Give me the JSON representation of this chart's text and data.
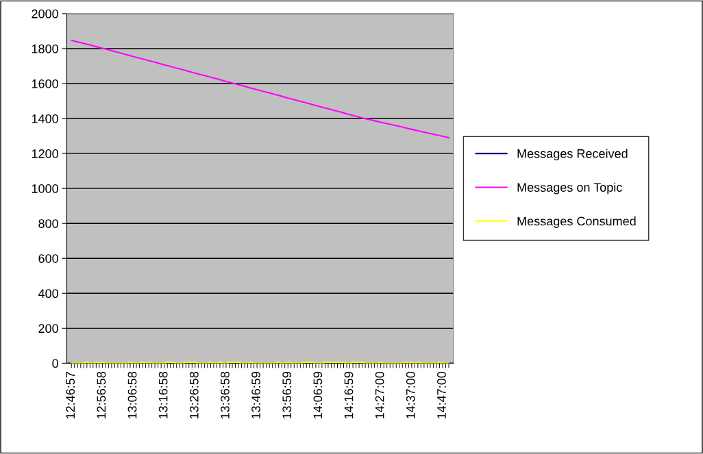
{
  "chart_data": {
    "type": "line",
    "categories": [
      "12:46:57",
      null,
      null,
      null,
      null,
      null,
      null,
      null,
      null,
      null,
      "12:56:58",
      null,
      null,
      null,
      null,
      null,
      null,
      null,
      null,
      null,
      "13:06:58",
      null,
      null,
      null,
      null,
      null,
      null,
      null,
      null,
      null,
      "13:16:58",
      null,
      null,
      null,
      null,
      null,
      null,
      null,
      null,
      null,
      "13:26:58",
      null,
      null,
      null,
      null,
      null,
      null,
      null,
      null,
      null,
      "13:36:58",
      null,
      null,
      null,
      null,
      null,
      null,
      null,
      null,
      null,
      "13:46:59",
      null,
      null,
      null,
      null,
      null,
      null,
      null,
      null,
      null,
      "13:56:59",
      null,
      null,
      null,
      null,
      null,
      null,
      null,
      null,
      null,
      "14:06:59",
      null,
      null,
      null,
      null,
      null,
      null,
      null,
      null,
      null,
      "14:16:59",
      null,
      null,
      null,
      null,
      null,
      null,
      null,
      null,
      null,
      "14:27:00",
      null,
      null,
      null,
      null,
      null,
      null,
      null,
      null,
      null,
      "14:37:00",
      null,
      null,
      null,
      null,
      null,
      null,
      null,
      null,
      null,
      "14:47:00",
      null,
      null
    ],
    "series": [
      {
        "name": "Messages Received",
        "color": "#000080",
        "values": [
          null,
          null,
          null,
          null,
          null,
          null,
          null,
          null,
          null,
          null,
          null,
          null,
          null,
          null,
          null,
          null,
          null,
          null,
          null,
          null,
          null,
          null,
          null,
          null,
          null,
          null,
          null,
          null,
          null,
          null,
          null,
          null,
          null,
          null,
          null,
          null,
          null,
          null,
          null,
          null,
          null,
          null,
          null,
          null,
          null,
          null,
          null,
          null,
          null,
          null,
          null,
          null,
          null,
          null,
          null,
          null,
          null,
          null,
          null,
          null,
          null,
          null,
          null,
          null,
          null,
          null,
          null,
          null,
          null,
          null,
          null,
          null,
          null,
          null,
          null,
          null,
          null,
          null,
          null,
          null,
          null,
          null,
          null,
          null,
          null,
          null,
          null,
          null,
          null,
          null,
          null,
          null,
          null,
          null,
          null,
          null,
          null,
          null,
          null,
          null,
          null,
          null,
          null,
          null,
          null,
          null,
          null,
          null,
          null,
          null,
          null,
          null,
          null,
          null,
          null,
          null,
          null,
          null,
          null,
          null,
          null,
          null,
          null
        ]
      },
      {
        "name": "Messages on Topic",
        "color": "#ff00ff",
        "values": [
          1847,
          1843,
          1838,
          1834,
          1829,
          1825,
          1820,
          1816,
          1811,
          1807,
          1802,
          1798,
          1793,
          1788,
          1783,
          1779,
          1774,
          1769,
          1764,
          1760,
          1755,
          1750,
          1745,
          1741,
          1736,
          1731,
          1726,
          1722,
          1717,
          1712,
          1707,
          1703,
          1698,
          1693,
          1688,
          1684,
          1679,
          1674,
          1669,
          1665,
          1660,
          1655,
          1650,
          1646,
          1641,
          1636,
          1631,
          1627,
          1622,
          1617,
          1612,
          1608,
          1603,
          1598,
          1593,
          1589,
          1584,
          1579,
          1574,
          1570,
          1565,
          1560,
          1555,
          1551,
          1546,
          1541,
          1536,
          1532,
          1527,
          1522,
          1517,
          1513,
          1508,
          1503,
          1498,
          1494,
          1489,
          1484,
          1479,
          1475,
          1470,
          1465,
          1460,
          1456,
          1451,
          1446,
          1441,
          1437,
          1432,
          1427,
          1422,
          1418,
          1413,
          1408,
          1403,
          1399,
          1395,
          1391,
          1387,
          1383,
          1379,
          1375,
          1371,
          1367,
          1363,
          1359,
          1355,
          1351,
          1346,
          1342,
          1338,
          1334,
          1330,
          1326,
          1322,
          1318,
          1314,
          1310,
          1306,
          1302,
          1298,
          1294,
          1290
        ]
      },
      {
        "name": "Messages Consumed",
        "color": "#ffff00",
        "values": [
          0,
          0,
          0,
          0,
          0,
          5,
          0,
          0,
          5,
          0,
          5,
          0,
          0,
          0,
          0,
          0,
          0,
          0,
          0,
          5,
          0,
          0,
          0,
          5,
          0,
          5,
          0,
          0,
          0,
          0,
          0,
          5,
          5,
          5,
          0,
          0,
          0,
          5,
          5,
          5,
          5,
          0,
          0,
          0,
          0,
          5,
          0,
          0,
          5,
          0,
          0,
          5,
          5,
          5,
          5,
          0,
          0,
          0,
          5,
          0,
          0,
          0,
          0,
          0,
          0,
          0,
          0,
          5,
          0,
          0,
          5,
          0,
          0,
          0,
          0,
          5,
          5,
          5,
          5,
          0,
          0,
          0,
          5,
          5,
          5,
          5,
          5,
          5,
          5,
          0,
          0,
          5,
          5,
          5,
          5,
          0,
          0,
          0,
          0,
          0,
          5,
          0,
          0,
          0,
          0,
          0,
          0,
          0,
          5,
          0,
          5,
          0,
          5,
          0,
          0,
          0,
          0,
          0,
          0,
          5,
          0,
          0,
          0
        ]
      }
    ],
    "ylim": [
      0,
      2000
    ],
    "yticks": [
      0,
      200,
      400,
      600,
      800,
      1000,
      1200,
      1400,
      1600,
      1800,
      2000
    ],
    "grid": "y",
    "legend": "right"
  }
}
